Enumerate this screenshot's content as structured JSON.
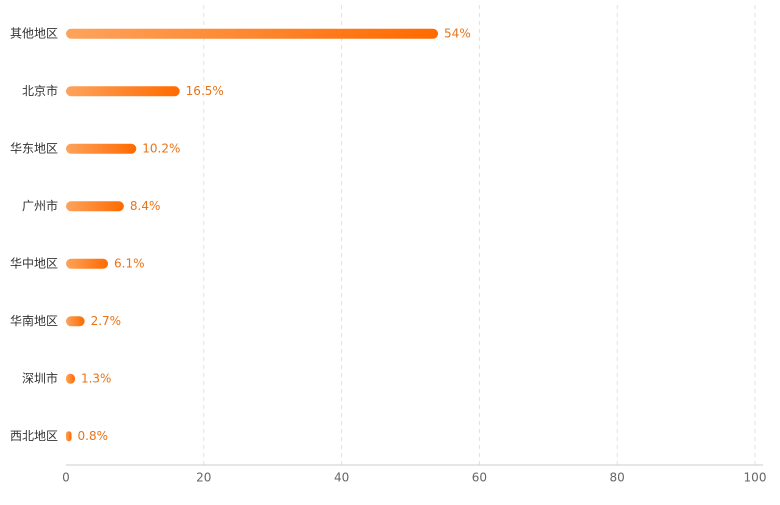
{
  "chart_data": {
    "type": "bar",
    "orientation": "horizontal",
    "categories": [
      "其他地区",
      "北京市",
      "华东地区",
      "广州市",
      "华中地区",
      "华南地区",
      "深圳市",
      "西北地区"
    ],
    "values": [
      54,
      16.5,
      10.2,
      8.4,
      6.1,
      2.7,
      1.3,
      0.8
    ],
    "value_labels": [
      "54%",
      "16.5%",
      "10.2%",
      "8.4%",
      "6.1%",
      "2.7%",
      "1.3%",
      "0.8%"
    ],
    "color": "#ff6a00",
    "gradient_start": "#fda35c",
    "xlim": [
      0,
      100
    ],
    "xticks": [
      0,
      20,
      40,
      60,
      80,
      100
    ],
    "grid": true
  }
}
